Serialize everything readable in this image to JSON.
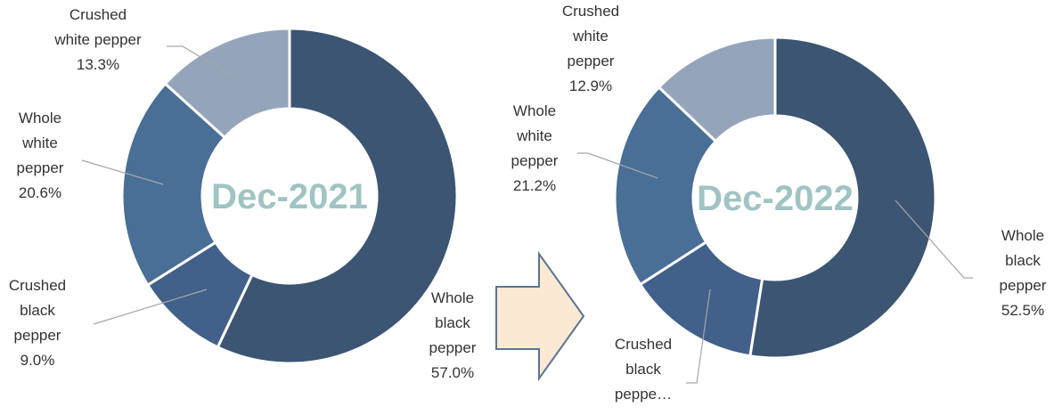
{
  "chart_data": [
    {
      "type": "donut",
      "title": "Dec-2021",
      "categories": [
        "Whole black pepper",
        "Crushed black pepper",
        "Whole white pepper",
        "Crushed white pepper"
      ],
      "values": [
        57.0,
        9.0,
        20.6,
        13.3
      ],
      "value_labels": [
        "57.0%",
        "9.0%",
        "20.6%",
        "13.3%"
      ],
      "colors": [
        "#3b5573",
        "#41608a",
        "#4a6f96",
        "#94a5bb"
      ]
    },
    {
      "type": "donut",
      "title": "Dec-2022",
      "categories": [
        "Whole black pepper",
        "Crushed black peppe…",
        "Whole white pepper",
        "Crushed white pepper"
      ],
      "values": [
        52.5,
        13.4,
        21.2,
        12.9
      ],
      "value_labels": [
        "52.5%",
        null,
        "21.2%",
        "12.9%"
      ],
      "colors": [
        "#3b5573",
        "#41608a",
        "#4a6f96",
        "#94a5bb"
      ]
    }
  ]
}
